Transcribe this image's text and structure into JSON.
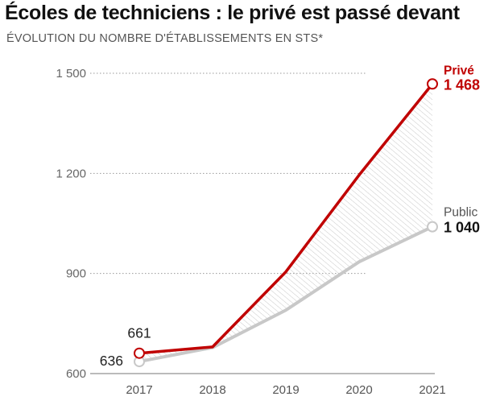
{
  "title": "Écoles de techniciens : le privé est passé devant",
  "subtitle": "ÉVOLUTION DU NOMBRE D'ÉTABLISSEMENTS EN STS*",
  "colors": {
    "prive": "#c00000",
    "public": "#c8c8c8",
    "grid": "#999999",
    "hatch": "#c8c8c8"
  },
  "chart_data": {
    "type": "line",
    "categories": [
      "2017",
      "2018",
      "2019",
      "2020",
      "2021"
    ],
    "x": [
      2017,
      2018,
      2019,
      2020,
      2021
    ],
    "yticks": [
      600,
      900,
      1200,
      1500
    ],
    "ytick_labels": [
      "600",
      "900",
      "1 200",
      "1 500"
    ],
    "ylim": [
      600,
      1500
    ],
    "grid": "dotted horizontal",
    "series": [
      {
        "name": "Privé",
        "values": [
          661,
          680,
          905,
          1195,
          1468
        ],
        "first_label": "661",
        "last_label": "1 468"
      },
      {
        "name": "Public",
        "values": [
          636,
          678,
          790,
          935,
          1040
        ],
        "first_label": "636",
        "last_label": "1 040"
      }
    ]
  }
}
